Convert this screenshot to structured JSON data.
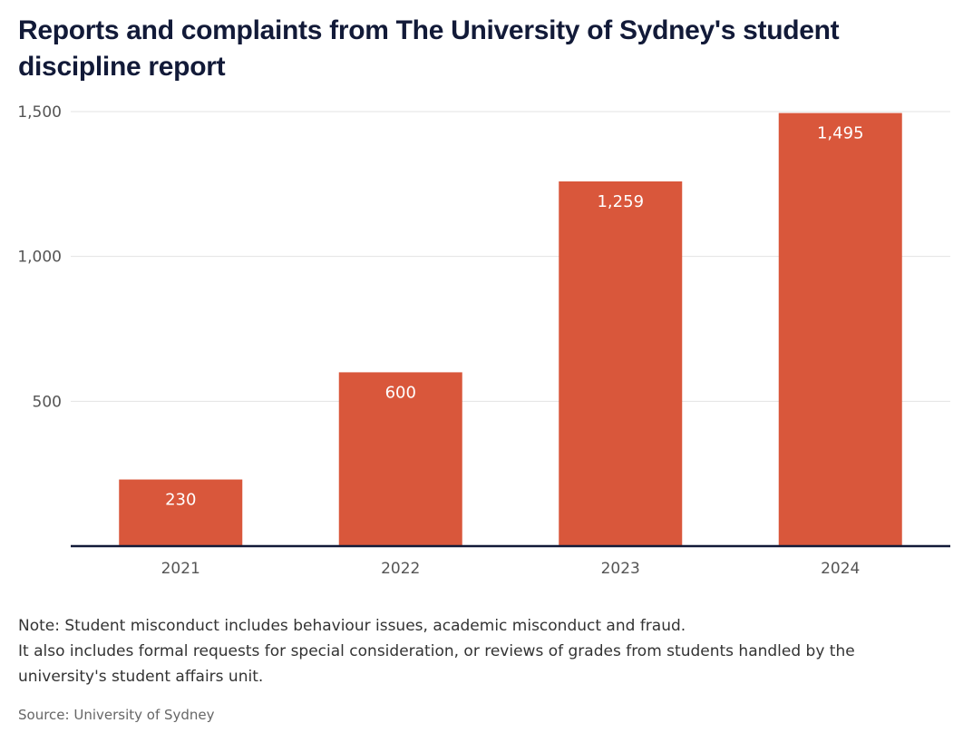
{
  "chart_data": {
    "type": "bar",
    "title": "Reports and complaints from The University of Sydney's student discipline report",
    "categories": [
      "2021",
      "2022",
      "2023",
      "2024"
    ],
    "values": [
      230,
      600,
      1259,
      1495
    ],
    "value_labels": [
      "230",
      "600",
      "1,259",
      "1,495"
    ],
    "yticks": [
      500,
      1000,
      1500
    ],
    "ytick_labels": [
      "500",
      "1,000",
      "1,500"
    ],
    "ylim": [
      0,
      1500
    ],
    "xlabel": "",
    "ylabel": "",
    "grid": true,
    "legend": "none"
  },
  "colors": {
    "bar": "#d9573b",
    "axis": "#121a38",
    "grid": "#e3e3e3",
    "title": "#121a38"
  },
  "notes": {
    "line1": "Note: Student misconduct includes behaviour issues, academic misconduct and fraud.",
    "line2": "It also includes formal requests for special consideration, or reviews of grades from students handled by the university's student affairs unit."
  },
  "source": "Source: University of Sydney"
}
